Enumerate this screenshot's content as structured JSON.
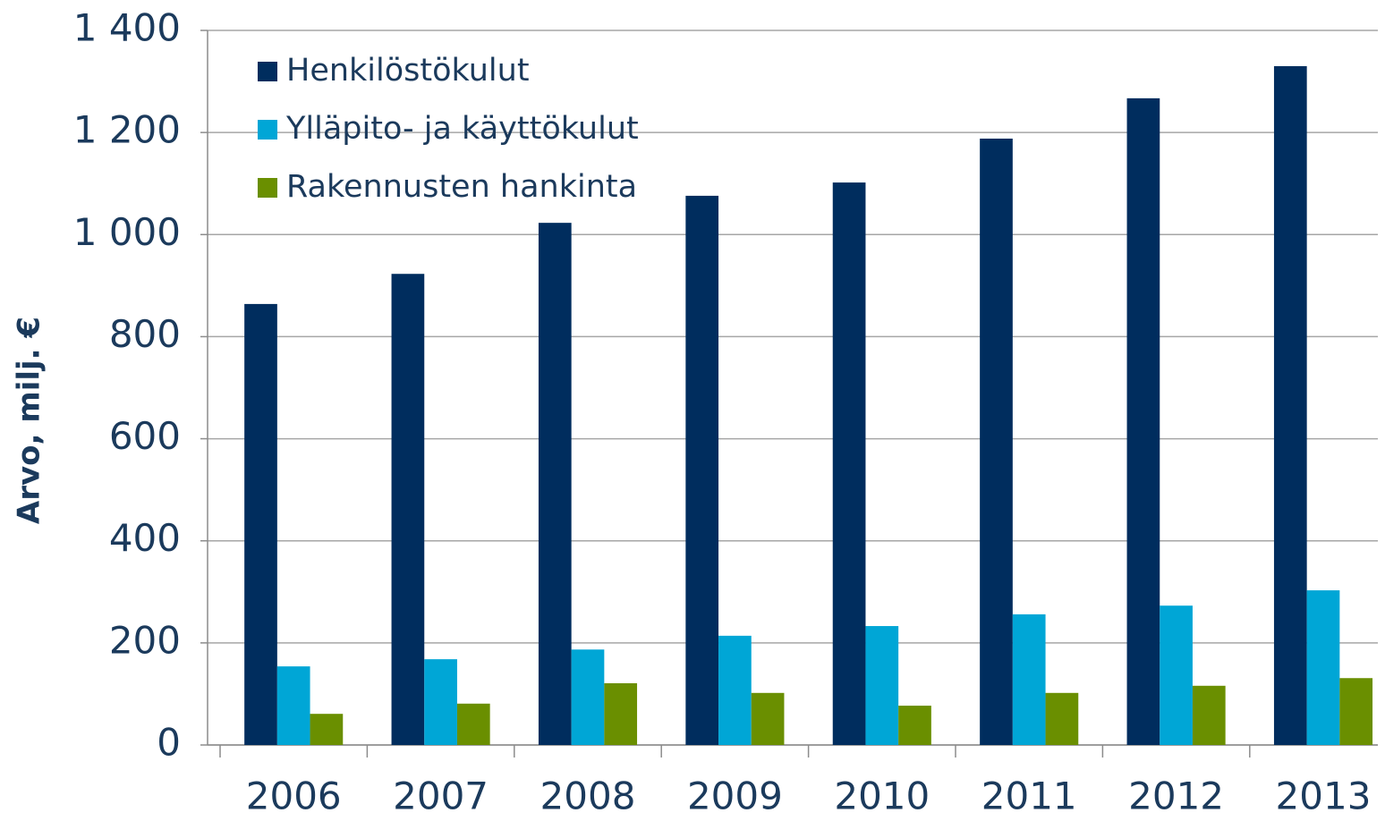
{
  "chart_data": {
    "type": "bar",
    "y_label": "Arvo, milj. €",
    "categories": [
      "2006",
      "2007",
      "2008",
      "2009",
      "2010",
      "2011",
      "2012",
      "2013"
    ],
    "series": [
      {
        "name": "Henkilöstökulut",
        "color": "#002d5e",
        "values": [
          864,
          923,
          1023,
          1076,
          1102,
          1188,
          1267,
          1330
        ]
      },
      {
        "name": "Ylläpito- ja käyttökulut",
        "color": "#00a6d6",
        "values": [
          154,
          168,
          187,
          214,
          233,
          256,
          273,
          303
        ]
      },
      {
        "name": "Rakennusten hankinta",
        "color": "#6a8f00",
        "values": [
          61,
          81,
          121,
          102,
          77,
          102,
          116,
          131
        ]
      }
    ],
    "ylim": [
      0,
      1400
    ],
    "yticks": [
      0,
      200,
      400,
      600,
      800,
      {
        "value": 1000,
        "label": "1 000"
      },
      {
        "value": 1200,
        "label": "1 200"
      },
      {
        "value": 1400,
        "label": "1 400"
      }
    ],
    "grid": true,
    "legend": "top-left"
  }
}
